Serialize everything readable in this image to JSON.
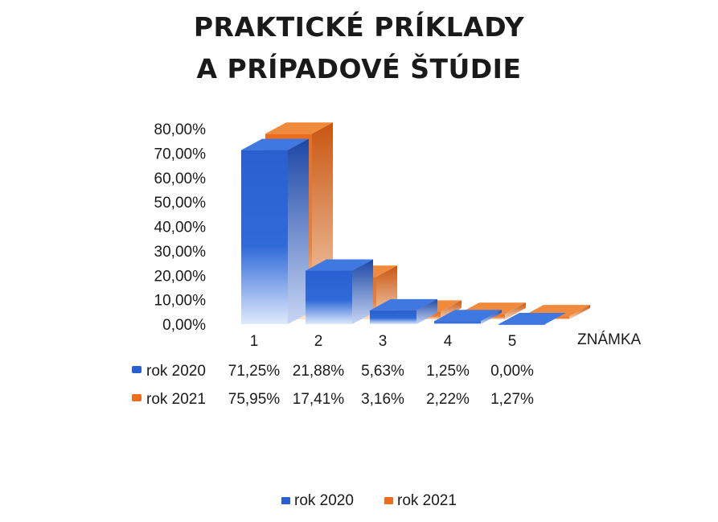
{
  "title_lines": [
    "PRAKTICKÉ PRÍKLADY",
    "A PRÍPADOVÉ ŠTÚDIE"
  ],
  "chart_data": {
    "type": "bar",
    "title": "PRAKTICKÉ PRÍKLADY A PRÍPADOVÉ ŠTÚDIE",
    "xlabel": "ZNÁMKA",
    "ylabel": "",
    "categories": [
      "1",
      "2",
      "3",
      "4",
      "5"
    ],
    "series": [
      {
        "name": "rok 2020",
        "color": "#2a5fd0",
        "values": [
          71.25,
          21.88,
          5.63,
          1.25,
          0.0
        ],
        "labels": [
          "71,25%",
          "21,88%",
          "5,63%",
          "1,25%",
          "0,00%"
        ]
      },
      {
        "name": "rok 2021",
        "color": "#ea6e1c",
        "values": [
          75.95,
          17.41,
          3.16,
          2.22,
          1.27
        ],
        "labels": [
          "75,95%",
          "17,41%",
          "3,16%",
          "2,22%",
          "1,27%"
        ]
      }
    ],
    "ylim": [
      0,
      80
    ],
    "yticks": [
      "0,00%",
      "10,00%",
      "20,00%",
      "30,00%",
      "40,00%",
      "50,00%",
      "60,00%",
      "70,00%",
      "80,00%"
    ],
    "style": "3d",
    "data_table": true,
    "legend": "bottom"
  }
}
